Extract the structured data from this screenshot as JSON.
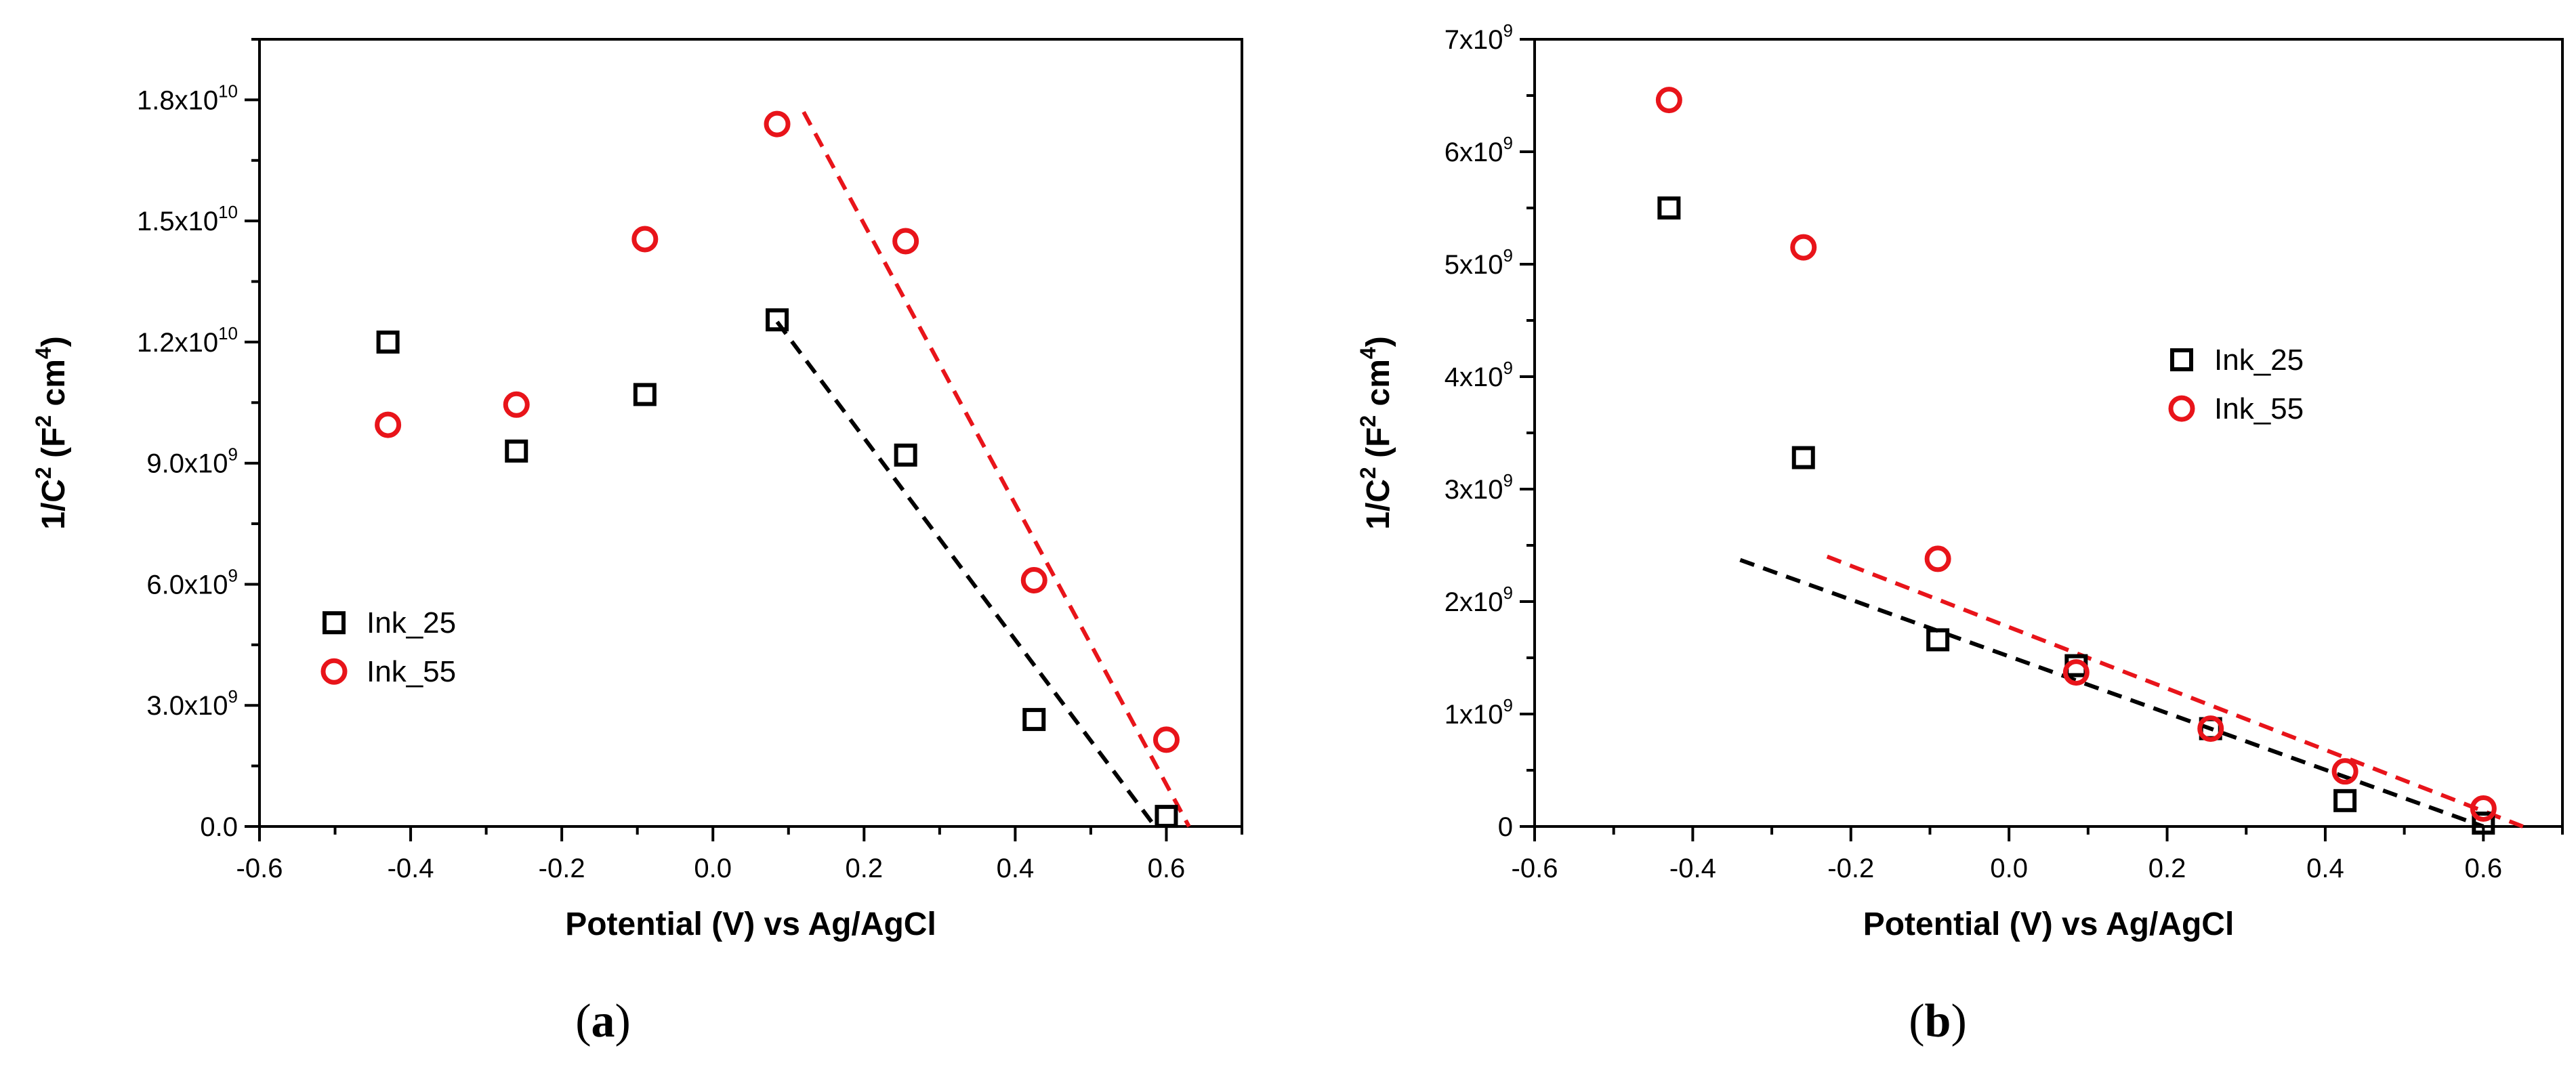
{
  "figure": {
    "colors": {
      "ink_25": "#000000",
      "ink_55": "#e8141a",
      "frame": "#000000"
    }
  },
  "chart_data": [
    {
      "type": "scatter",
      "panel_label": "a",
      "xlabel": "Potential (V) vs Ag/AgCl",
      "ylabel": {
        "base": "1/C",
        "sup1": "2",
        "mid": " (F",
        "sup2": "2",
        "mid2": " cm",
        "sup3": "4",
        "end": ")"
      },
      "xlim": [
        -0.6,
        0.7
      ],
      "ylim": [
        0,
        19500000000.0
      ],
      "xticks": [
        -0.6,
        -0.4,
        -0.2,
        0.0,
        0.2,
        0.4,
        0.6
      ],
      "xtick_labels": [
        "-0.6",
        "-0.4",
        "-0.2",
        "0.0",
        "0.2",
        "0.4",
        "0.6"
      ],
      "yticks": [
        {
          "value": 0,
          "mant": "0.0",
          "exp": ""
        },
        {
          "value": 3000000000.0,
          "mant": "3.0x10",
          "exp": "9"
        },
        {
          "value": 6000000000.0,
          "mant": "6.0x10",
          "exp": "9"
        },
        {
          "value": 9000000000.0,
          "mant": "9.0x10",
          "exp": "9"
        },
        {
          "value": 12000000000.0,
          "mant": "1.2x10",
          "exp": "10"
        },
        {
          "value": 15000000000.0,
          "mant": "1.5x10",
          "exp": "10"
        },
        {
          "value": 18000000000.0,
          "mant": "1.8x10",
          "exp": "10"
        }
      ],
      "legend": {
        "position": "center-left"
      },
      "series": [
        {
          "name": "Ink_25",
          "marker": "square",
          "color": "#000000",
          "x": [
            -0.43,
            -0.26,
            -0.09,
            0.085,
            0.255,
            0.425,
            0.6
          ],
          "y": [
            12000000000.0,
            9300000000.0,
            10700000000.0,
            12550000000.0,
            9200000000.0,
            2650000000.0,
            250000000.0
          ],
          "fit": {
            "x": [
              0.085,
              0.585
            ],
            "y": [
              12500000000.0,
              0
            ]
          }
        },
        {
          "name": "Ink_55",
          "marker": "circle",
          "color": "#e8141a",
          "x": [
            -0.43,
            -0.26,
            -0.09,
            0.085,
            0.255,
            0.425,
            0.6
          ],
          "y": [
            9950000000.0,
            10450000000.0,
            14550000000.0,
            17400000000.0,
            14500000000.0,
            6100000000.0,
            2150000000.0
          ],
          "fit": {
            "x": [
              0.12,
              0.63
            ],
            "y": [
              17700000000.0,
              0
            ]
          }
        }
      ]
    },
    {
      "type": "scatter",
      "panel_label": "b",
      "xlabel": "Potential (V) vs Ag/AgCl",
      "ylabel": {
        "base": "1/C",
        "sup1": "2",
        "mid": " (F",
        "sup2": "2",
        "mid2": " cm",
        "sup3": "4",
        "end": ")"
      },
      "xlim": [
        -0.6,
        0.7
      ],
      "ylim": [
        0,
        7000000000.0
      ],
      "xticks": [
        -0.6,
        -0.4,
        -0.2,
        0.0,
        0.2,
        0.4,
        0.6
      ],
      "xtick_labels": [
        "-0.6",
        "-0.4",
        "-0.2",
        "0.0",
        "0.2",
        "0.4",
        "0.6"
      ],
      "yticks": [
        {
          "value": 0,
          "mant": "0",
          "exp": ""
        },
        {
          "value": 1000000000.0,
          "mant": "1x10",
          "exp": "9"
        },
        {
          "value": 2000000000.0,
          "mant": "2x10",
          "exp": "9"
        },
        {
          "value": 3000000000.0,
          "mant": "3x10",
          "exp": "9"
        },
        {
          "value": 4000000000.0,
          "mant": "4x10",
          "exp": "9"
        },
        {
          "value": 5000000000.0,
          "mant": "5x10",
          "exp": "9"
        },
        {
          "value": 6000000000.0,
          "mant": "6x10",
          "exp": "9"
        },
        {
          "value": 7000000000.0,
          "mant": "7x10",
          "exp": "9"
        }
      ],
      "legend": {
        "position": "center-right"
      },
      "series": [
        {
          "name": "Ink_25",
          "marker": "square",
          "color": "#000000",
          "x": [
            -0.43,
            -0.26,
            -0.09,
            0.085,
            0.255,
            0.425,
            0.6
          ],
          "y": [
            5500000000.0,
            3280000000.0,
            1660000000.0,
            1430000000.0,
            870000000.0,
            230000000.0,
            30000000.0
          ],
          "fit": {
            "x": [
              -0.34,
              0.6
            ],
            "y": [
              2370000000.0,
              0
            ]
          }
        },
        {
          "name": "Ink_55",
          "marker": "circle",
          "color": "#e8141a",
          "x": [
            -0.43,
            -0.26,
            -0.09,
            0.085,
            0.255,
            0.425,
            0.6
          ],
          "y": [
            6460000000.0,
            5150000000.0,
            2380000000.0,
            1370000000.0,
            870000000.0,
            490000000.0,
            160000000.0
          ],
          "fit": {
            "x": [
              -0.23,
              0.65
            ],
            "y": [
              2400000000.0,
              0
            ]
          }
        }
      ]
    }
  ]
}
